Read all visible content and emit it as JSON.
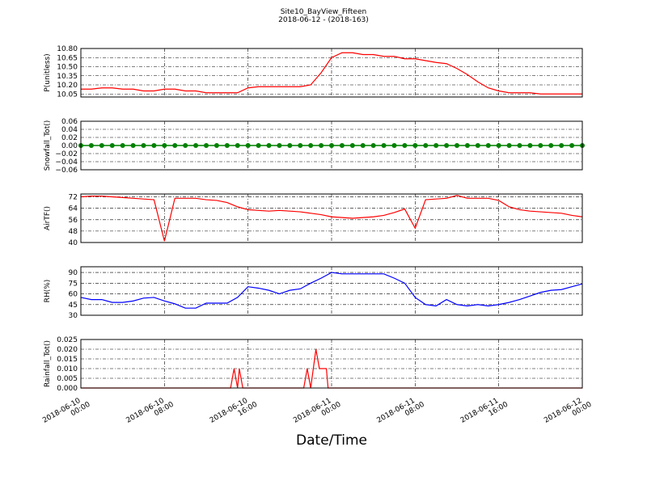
{
  "chart_data": [
    {
      "type": "line",
      "title": "Site10_BayView_Fifteen",
      "subtitle": "2018-06-12 - (2018-163)",
      "ylabel": "P(unitless)",
      "color": "#ff0000",
      "xlim": [
        "2018-06-10 00:00",
        "2018-06-12 00:00"
      ],
      "x": [
        "2018-06-10 00:00",
        "2018-06-10 01:00",
        "2018-06-10 02:00",
        "2018-06-10 03:00",
        "2018-06-10 04:00",
        "2018-06-10 05:00",
        "2018-06-10 06:00",
        "2018-06-10 07:00",
        "2018-06-10 08:00",
        "2018-06-10 09:00",
        "2018-06-10 10:00",
        "2018-06-10 11:00",
        "2018-06-10 12:00",
        "2018-06-10 13:00",
        "2018-06-10 14:00",
        "2018-06-10 15:00",
        "2018-06-10 16:00",
        "2018-06-10 17:00",
        "2018-06-10 18:00",
        "2018-06-10 19:00",
        "2018-06-10 20:00",
        "2018-06-10 21:00",
        "2018-06-10 22:00",
        "2018-06-10 23:00",
        "2018-06-11 00:00",
        "2018-06-11 01:00",
        "2018-06-11 02:00",
        "2018-06-11 03:00",
        "2018-06-11 04:00",
        "2018-06-11 05:00",
        "2018-06-11 06:00",
        "2018-06-11 07:00",
        "2018-06-11 08:00",
        "2018-06-11 09:00",
        "2018-06-11 10:00",
        "2018-06-11 11:00",
        "2018-06-11 12:00",
        "2018-06-11 13:00",
        "2018-06-11 14:00",
        "2018-06-11 15:00",
        "2018-06-11 16:00",
        "2018-06-11 17:00",
        "2018-06-11 18:00",
        "2018-06-11 19:00",
        "2018-06-11 20:00",
        "2018-06-11 21:00",
        "2018-06-11 22:00",
        "2018-06-11 23:00",
        "2018-06-12 00:00"
      ],
      "values": [
        10.13,
        10.13,
        10.15,
        10.15,
        10.13,
        10.13,
        10.1,
        10.1,
        10.13,
        10.13,
        10.1,
        10.1,
        10.07,
        10.07,
        10.07,
        10.07,
        10.15,
        10.17,
        10.17,
        10.17,
        10.17,
        10.17,
        10.2,
        10.4,
        10.65,
        10.73,
        10.73,
        10.7,
        10.7,
        10.67,
        10.67,
        10.63,
        10.63,
        10.6,
        10.57,
        10.55,
        10.47,
        10.37,
        10.25,
        10.15,
        10.1,
        10.07,
        10.07,
        10.07,
        10.05,
        10.05,
        10.05,
        10.05,
        10.05
      ],
      "ylim": [
        10.0,
        10.8
      ],
      "yticks": [
        10.05,
        {
          "value": 10.2,
          "label": "10.20"
        },
        10.35,
        {
          "value": 10.5,
          "label": "10.50"
        },
        10.65,
        {
          "value": 10.8,
          "label": "10.80"
        }
      ],
      "grid": true
    },
    {
      "type": "line",
      "ylabel": "Snowfall_Tot()",
      "color": "#008000",
      "marker": true,
      "xlim": [
        "2018-06-10 00:00",
        "2018-06-12 00:00"
      ],
      "x": [
        "2018-06-10 00:00",
        "2018-06-10 01:00",
        "2018-06-10 02:00",
        "2018-06-10 03:00",
        "2018-06-10 04:00",
        "2018-06-10 05:00",
        "2018-06-10 06:00",
        "2018-06-10 07:00",
        "2018-06-10 08:00",
        "2018-06-10 09:00",
        "2018-06-10 10:00",
        "2018-06-10 11:00",
        "2018-06-10 12:00",
        "2018-06-10 13:00",
        "2018-06-10 14:00",
        "2018-06-10 15:00",
        "2018-06-10 16:00",
        "2018-06-10 17:00",
        "2018-06-10 18:00",
        "2018-06-10 19:00",
        "2018-06-10 20:00",
        "2018-06-10 21:00",
        "2018-06-10 22:00",
        "2018-06-10 23:00",
        "2018-06-11 00:00",
        "2018-06-11 01:00",
        "2018-06-11 02:00",
        "2018-06-11 03:00",
        "2018-06-11 04:00",
        "2018-06-11 05:00",
        "2018-06-11 06:00",
        "2018-06-11 07:00",
        "2018-06-11 08:00",
        "2018-06-11 09:00",
        "2018-06-11 10:00",
        "2018-06-11 11:00",
        "2018-06-11 12:00",
        "2018-06-11 13:00",
        "2018-06-11 14:00",
        "2018-06-11 15:00",
        "2018-06-11 16:00",
        "2018-06-11 17:00",
        "2018-06-11 18:00",
        "2018-06-11 19:00",
        "2018-06-11 20:00",
        "2018-06-11 21:00",
        "2018-06-11 22:00",
        "2018-06-11 23:00",
        "2018-06-12 00:00"
      ],
      "values": [
        0,
        0,
        0,
        0,
        0,
        0,
        0,
        0,
        0,
        0,
        0,
        0,
        0,
        0,
        0,
        0,
        0,
        0,
        0,
        0,
        0,
        0,
        0,
        0,
        0,
        0,
        0,
        0,
        0,
        0,
        0,
        0,
        0,
        0,
        0,
        0,
        0,
        0,
        0,
        0,
        0,
        0,
        0,
        0,
        0,
        0,
        0,
        0,
        0
      ],
      "ylim": [
        -0.06,
        0.06
      ],
      "yticks": [
        {
          "value": -0.06,
          "label": "−0.06"
        },
        {
          "value": -0.04,
          "label": "−0.04"
        },
        {
          "value": -0.02,
          "label": "−0.02"
        },
        {
          "value": 0,
          "label": "0.00"
        },
        0.02,
        0.04,
        0.06
      ],
      "grid": true
    },
    {
      "type": "line",
      "ylabel": "AirTF()",
      "color": "#ff0000",
      "xlim": [
        "2018-06-10 00:00",
        "2018-06-12 00:00"
      ],
      "x": [
        "2018-06-10 00:00",
        "2018-06-10 01:00",
        "2018-06-10 02:00",
        "2018-06-10 03:00",
        "2018-06-10 04:00",
        "2018-06-10 05:00",
        "2018-06-10 06:00",
        "2018-06-10 07:00",
        "2018-06-10 08:00",
        "2018-06-10 09:00",
        "2018-06-10 10:00",
        "2018-06-10 11:00",
        "2018-06-10 12:00",
        "2018-06-10 13:00",
        "2018-06-10 14:00",
        "2018-06-10 15:00",
        "2018-06-10 16:00",
        "2018-06-10 17:00",
        "2018-06-10 18:00",
        "2018-06-10 19:00",
        "2018-06-10 20:00",
        "2018-06-10 21:00",
        "2018-06-10 22:00",
        "2018-06-10 23:00",
        "2018-06-11 00:00",
        "2018-06-11 01:00",
        "2018-06-11 02:00",
        "2018-06-11 03:00",
        "2018-06-11 04:00",
        "2018-06-11 05:00",
        "2018-06-11 06:00",
        "2018-06-11 07:00",
        "2018-06-11 08:00",
        "2018-06-11 09:00",
        "2018-06-11 10:00",
        "2018-06-11 11:00",
        "2018-06-11 12:00",
        "2018-06-11 13:00",
        "2018-06-11 14:00",
        "2018-06-11 15:00",
        "2018-06-11 16:00",
        "2018-06-11 17:00",
        "2018-06-11 18:00",
        "2018-06-11 19:00",
        "2018-06-11 20:00",
        "2018-06-11 21:00",
        "2018-06-11 22:00",
        "2018-06-11 23:00",
        "2018-06-12 00:00"
      ],
      "values": [
        72,
        72.5,
        72.5,
        72,
        71.5,
        71,
        70.5,
        70,
        41,
        71,
        71,
        71,
        70,
        69.5,
        68,
        65,
        63,
        62.5,
        62,
        62.5,
        62,
        61.5,
        60.5,
        59.5,
        58,
        57.5,
        57,
        57.5,
        58,
        59,
        61,
        63.5,
        50,
        70,
        70.5,
        71,
        73,
        71,
        71,
        71,
        69.5,
        65,
        63,
        62,
        61.5,
        61,
        60.5,
        59,
        58
      ],
      "ylim": [
        40,
        74
      ],
      "yticks": [
        40,
        48,
        56,
        64,
        72
      ],
      "grid": true
    },
    {
      "type": "line",
      "ylabel": "RH(%)",
      "color": "#0000ff",
      "xlim": [
        "2018-06-10 00:00",
        "2018-06-12 00:00"
      ],
      "x": [
        "2018-06-10 00:00",
        "2018-06-10 01:00",
        "2018-06-10 02:00",
        "2018-06-10 03:00",
        "2018-06-10 04:00",
        "2018-06-10 05:00",
        "2018-06-10 06:00",
        "2018-06-10 07:00",
        "2018-06-10 08:00",
        "2018-06-10 09:00",
        "2018-06-10 10:00",
        "2018-06-10 11:00",
        "2018-06-10 12:00",
        "2018-06-10 13:00",
        "2018-06-10 14:00",
        "2018-06-10 15:00",
        "2018-06-10 16:00",
        "2018-06-10 17:00",
        "2018-06-10 18:00",
        "2018-06-10 19:00",
        "2018-06-10 20:00",
        "2018-06-10 21:00",
        "2018-06-10 22:00",
        "2018-06-10 23:00",
        "2018-06-11 00:00",
        "2018-06-11 01:00",
        "2018-06-11 02:00",
        "2018-06-11 03:00",
        "2018-06-11 04:00",
        "2018-06-11 05:00",
        "2018-06-11 06:00",
        "2018-06-11 07:00",
        "2018-06-11 08:00",
        "2018-06-11 09:00",
        "2018-06-11 10:00",
        "2018-06-11 11:00",
        "2018-06-11 12:00",
        "2018-06-11 13:00",
        "2018-06-11 14:00",
        "2018-06-11 15:00",
        "2018-06-11 16:00",
        "2018-06-11 17:00",
        "2018-06-11 18:00",
        "2018-06-11 19:00",
        "2018-06-11 20:00",
        "2018-06-11 21:00",
        "2018-06-11 22:00",
        "2018-06-11 23:00",
        "2018-06-12 00:00"
      ],
      "values": [
        55,
        52,
        52,
        48,
        48,
        50,
        54,
        55,
        50,
        46,
        40,
        40,
        47,
        47,
        47,
        55,
        70,
        68,
        65,
        60,
        65,
        67,
        75,
        82,
        90,
        88,
        88,
        88,
        88,
        88,
        82,
        75,
        55,
        45,
        43,
        52,
        45,
        43,
        45,
        43,
        45,
        48,
        52,
        57,
        62,
        65,
        66,
        70,
        74
      ],
      "ylim": [
        30,
        98
      ],
      "yticks": [
        30,
        45,
        60,
        75,
        90
      ],
      "grid": true
    },
    {
      "type": "line",
      "ylabel": "Rainfall_Tot()",
      "xlabel": "Date/Time",
      "color": "#ff0000",
      "xlim": [
        "2018-06-10 00:00",
        "2018-06-12 00:00"
      ],
      "x": [
        "2018-06-10 00:00",
        "2018-06-10 14:20",
        "2018-06-10 14:40",
        "2018-06-10 15:00",
        "2018-06-10 15:10",
        "2018-06-10 15:30",
        "2018-06-10 21:20",
        "2018-06-10 21:40",
        "2018-06-10 22:00",
        "2018-06-10 22:30",
        "2018-06-10 22:50",
        "2018-06-10 23:30",
        "2018-06-10 23:40",
        "2018-06-12 00:00"
      ],
      "values": [
        0,
        0,
        0.01,
        0,
        0.01,
        0,
        0,
        0.01,
        0,
        0.02,
        0.01,
        0.01,
        0,
        0
      ],
      "ylim": [
        0,
        0.025
      ],
      "yticks": [
        {
          "value": 0,
          "label": "0.000"
        },
        0.005,
        {
          "value": 0.01,
          "label": "0.010"
        },
        0.015,
        {
          "value": 0.02,
          "label": "0.020"
        },
        0.025
      ],
      "xticks": [
        "2018-06-10 00:00",
        "2018-06-10 08:00",
        "2018-06-10 16:00",
        "2018-06-11 00:00",
        "2018-06-11 08:00",
        "2018-06-11 16:00",
        "2018-06-12 00:00"
      ],
      "grid": true
    }
  ]
}
